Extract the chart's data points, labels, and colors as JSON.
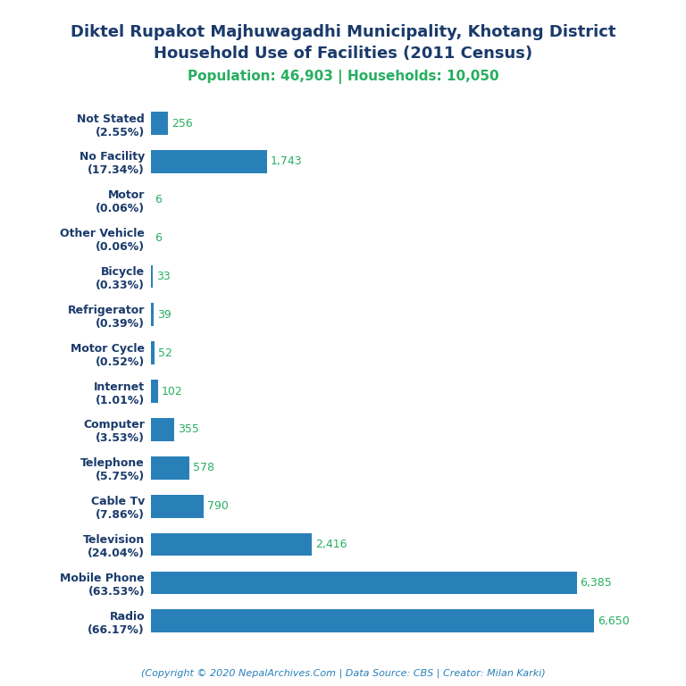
{
  "title_line1": "Diktel Rupakot Majhuwagadhi Municipality, Khotang District",
  "title_line2": "Household Use of Facilities (2011 Census)",
  "subtitle": "Population: 46,903 | Households: 10,050",
  "copyright": "(Copyright © 2020 NepalArchives.Com | Data Source: CBS | Creator: Milan Karki)",
  "categories": [
    "Not Stated\n(2.55%)",
    "No Facility\n(17.34%)",
    "Motor\n(0.06%)",
    "Other Vehicle\n(0.06%)",
    "Bicycle\n(0.33%)",
    "Refrigerator\n(0.39%)",
    "Motor Cycle\n(0.52%)",
    "Internet\n(1.01%)",
    "Computer\n(3.53%)",
    "Telephone\n(5.75%)",
    "Cable Tv\n(7.86%)",
    "Television\n(24.04%)",
    "Mobile Phone\n(63.53%)",
    "Radio\n(66.17%)"
  ],
  "values": [
    256,
    1743,
    6,
    6,
    33,
    39,
    52,
    102,
    355,
    578,
    790,
    2416,
    6385,
    6650
  ],
  "bar_color": "#2980b9",
  "title_color": "#1a3a6b",
  "subtitle_color": "#27ae60",
  "value_color": "#27ae60",
  "copyright_color": "#2980b9",
  "background_color": "#ffffff",
  "xlim": [
    0,
    7200
  ],
  "title_fontsize": 13,
  "subtitle_fontsize": 11,
  "label_fontsize": 9,
  "value_fontsize": 9,
  "copyright_fontsize": 8
}
